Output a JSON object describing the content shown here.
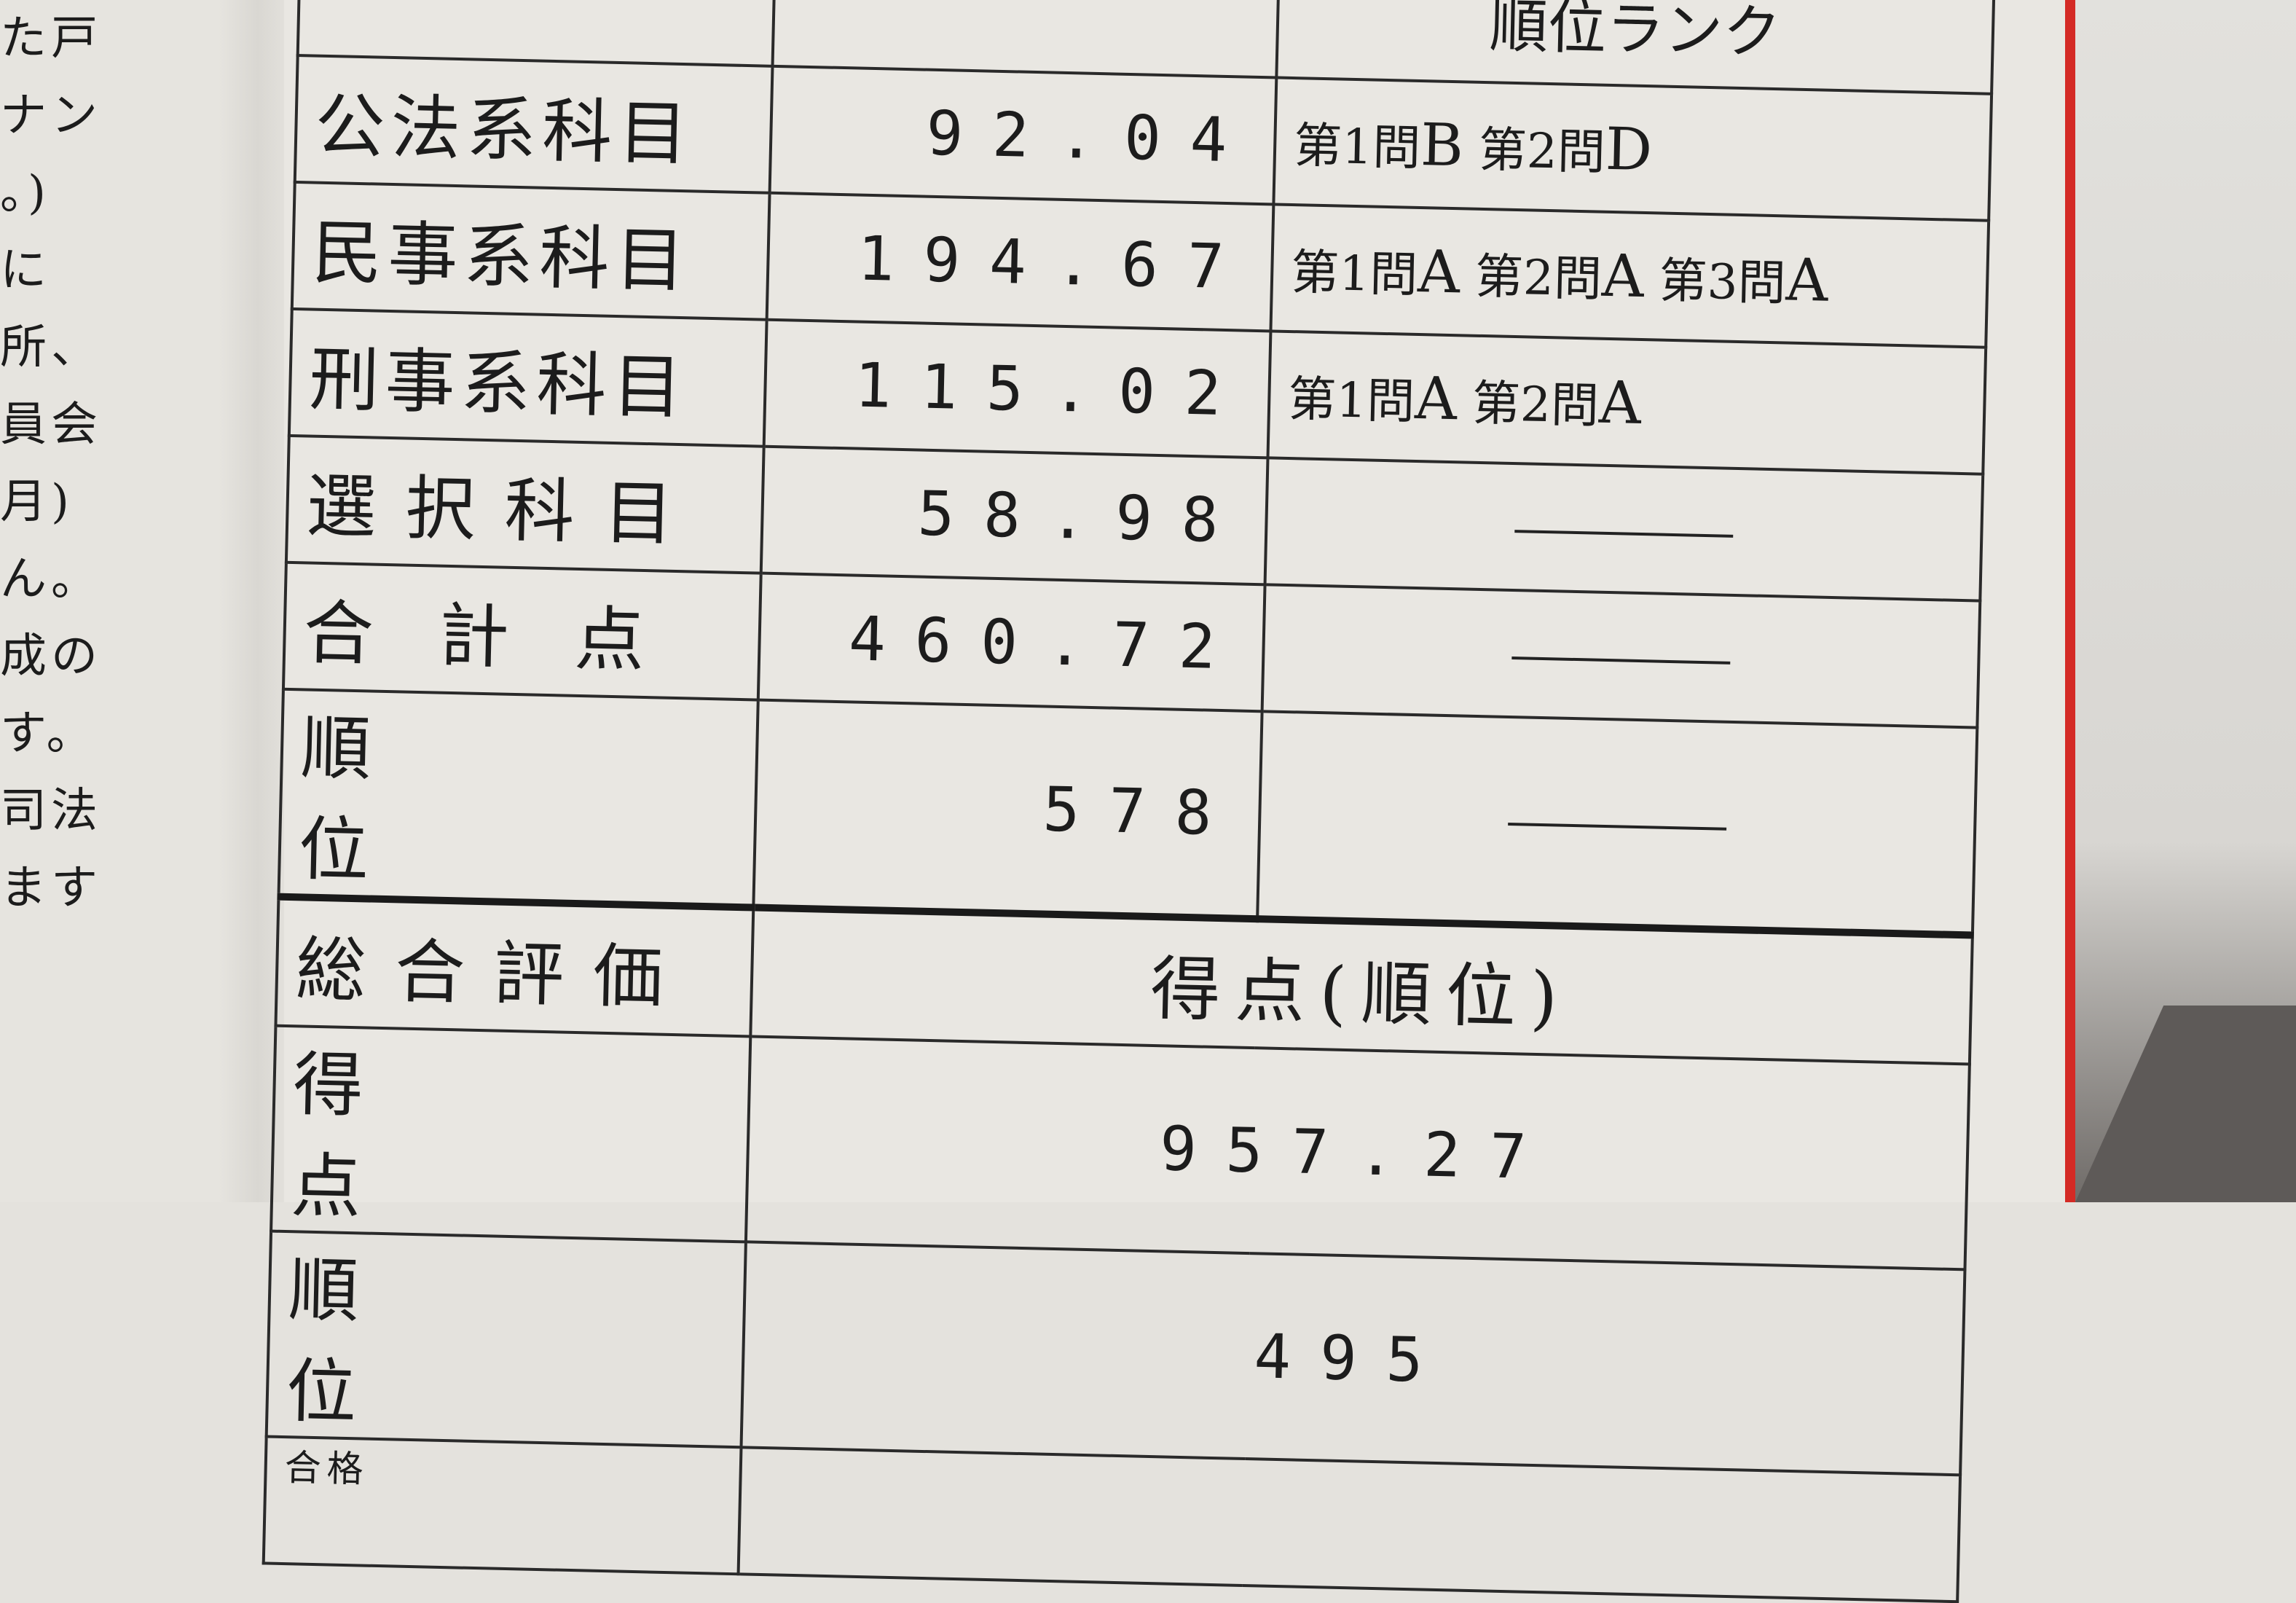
{
  "left_page_fragments": [
    "た戸",
    "ナン",
    "。)",
    "に",
    "所、",
    "員会",
    "月)",
    "ん。",
    "成の",
    "す。",
    "司法",
    "ます"
  ],
  "header": {
    "rank_column_partial": "順位ランク"
  },
  "rows": [
    {
      "subject": "公法系科目",
      "score": "92.04",
      "ranks": [
        {
          "q": "第1問",
          "g": "B"
        },
        {
          "q": "第2問",
          "g": "D"
        }
      ]
    },
    {
      "subject": "民事系科目",
      "score": "194.67",
      "ranks": [
        {
          "q": "第1問",
          "g": "A"
        },
        {
          "q": "第2問",
          "g": "A"
        },
        {
          "q": "第3問",
          "g": "A"
        }
      ]
    },
    {
      "subject": "刑事系科目",
      "score": "115.02",
      "ranks": [
        {
          "q": "第1問",
          "g": "A"
        },
        {
          "q": "第2問",
          "g": "A"
        }
      ]
    },
    {
      "subject": "選択科目",
      "score": "58.98",
      "ranks": []
    },
    {
      "subject": "合計点",
      "score": "460.72",
      "ranks": []
    },
    {
      "subject": "順位",
      "score": "578",
      "ranks": []
    }
  ],
  "overall": {
    "label": "総合評価",
    "header": "得点(順位)",
    "score_label": "得点",
    "score": "957.27",
    "rank_label": "順位",
    "rank": "495",
    "next_partial": "合格"
  },
  "colors": {
    "ink": "#1c1c1c",
    "paper": "#e9e7e2",
    "red_edge": "#d42a25"
  }
}
